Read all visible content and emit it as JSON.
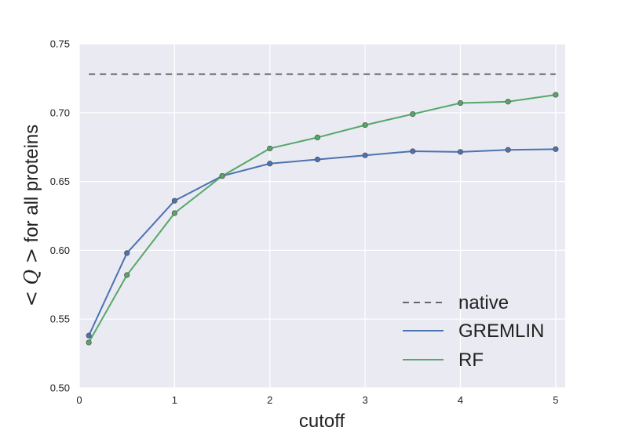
{
  "chart_data": {
    "type": "line",
    "title": "",
    "xlabel": "cutoff",
    "ylabel": {
      "math": "< Q >",
      "text": " for all proteins"
    },
    "xlim": [
      0,
      5.1
    ],
    "ylim": [
      0.5,
      0.75
    ],
    "xticks": [
      "0",
      "1",
      "2",
      "3",
      "4",
      "5"
    ],
    "yticks": [
      "0.50",
      "0.55",
      "0.60",
      "0.65",
      "0.70",
      "0.75"
    ],
    "grid": true,
    "legend_position": "lower-right",
    "reference_line": {
      "name": "native",
      "value": 0.728,
      "x_range": [
        0.1,
        5.0
      ],
      "style": "dashed",
      "color": "#666666"
    },
    "x": [
      0.1,
      0.5,
      1.0,
      1.5,
      2.0,
      2.5,
      3.0,
      3.5,
      4.0,
      4.5,
      5.0
    ],
    "series": [
      {
        "name": "GREMLIN",
        "color": "#4c72b0",
        "values": [
          0.538,
          0.598,
          0.636,
          0.654,
          0.663,
          0.666,
          0.669,
          0.672,
          0.6715,
          0.673,
          0.6735
        ]
      },
      {
        "name": "RF",
        "color": "#55a868",
        "values": [
          0.533,
          0.582,
          0.627,
          0.654,
          0.674,
          0.682,
          0.691,
          0.699,
          0.707,
          0.708,
          0.713
        ]
      }
    ]
  }
}
